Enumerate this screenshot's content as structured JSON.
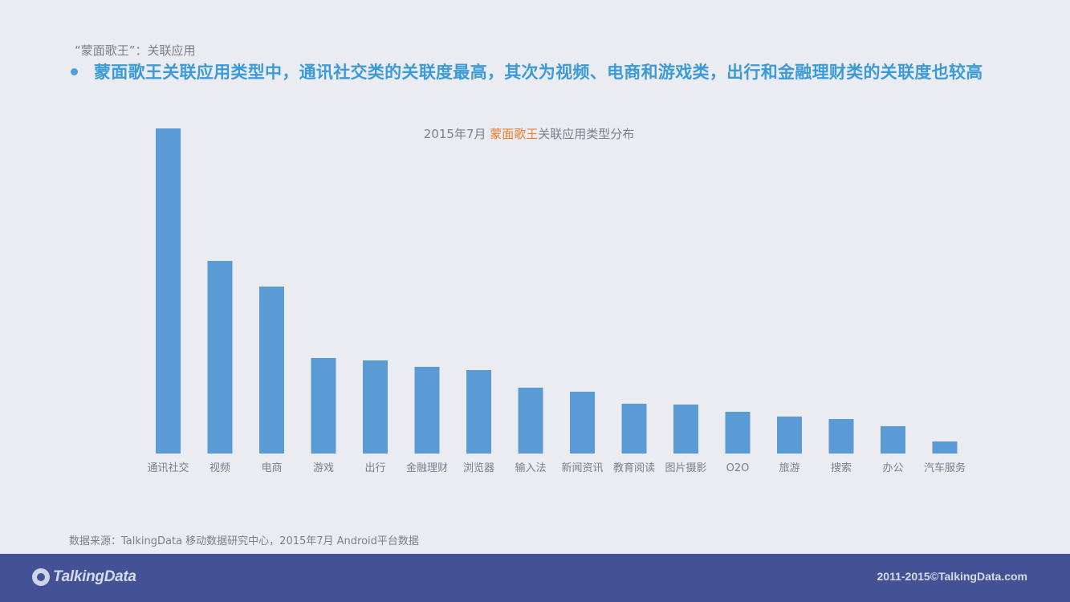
{
  "header": {
    "section_label": "“蒙面歌王”：关联应用",
    "headline": "蒙面歌王关联应用类型中，通讯社交类的关联度最高，其次为视频、电商和游戏类，出行和金融理财类的关联度也较高"
  },
  "chart_data": {
    "type": "bar",
    "title_prefix": "2015年7月 ",
    "title_highlight": "蒙面歌王",
    "title_suffix": "关联应用类型分布",
    "categories": [
      "通讯社交",
      "视频",
      "电商",
      "游戏",
      "出行",
      "金融理财",
      "浏览器",
      "输入法",
      "新闻资讯",
      "教育阅读",
      "图片摄影",
      "O2O",
      "旅游",
      "搜索",
      "办公",
      "汽车服务"
    ],
    "values": [
      405,
      240,
      208,
      119,
      116,
      108,
      104,
      82,
      77,
      62,
      61,
      52,
      46,
      43,
      34,
      15
    ],
    "ylim": [
      0,
      405
    ],
    "bar_color": "#5b9bd5",
    "grid": false,
    "legend": "none"
  },
  "source": "数据来源：TalkingData 移动数据研究中心，2015年7月 Android平台数据",
  "footer": {
    "logo_text": "TalkingData",
    "copyright": "2011-2015©TalkingData.com"
  },
  "colors": {
    "background": "#ebecf1",
    "headline": "#3b9bd8",
    "highlight": "#e4812f",
    "footer": "#435295"
  }
}
